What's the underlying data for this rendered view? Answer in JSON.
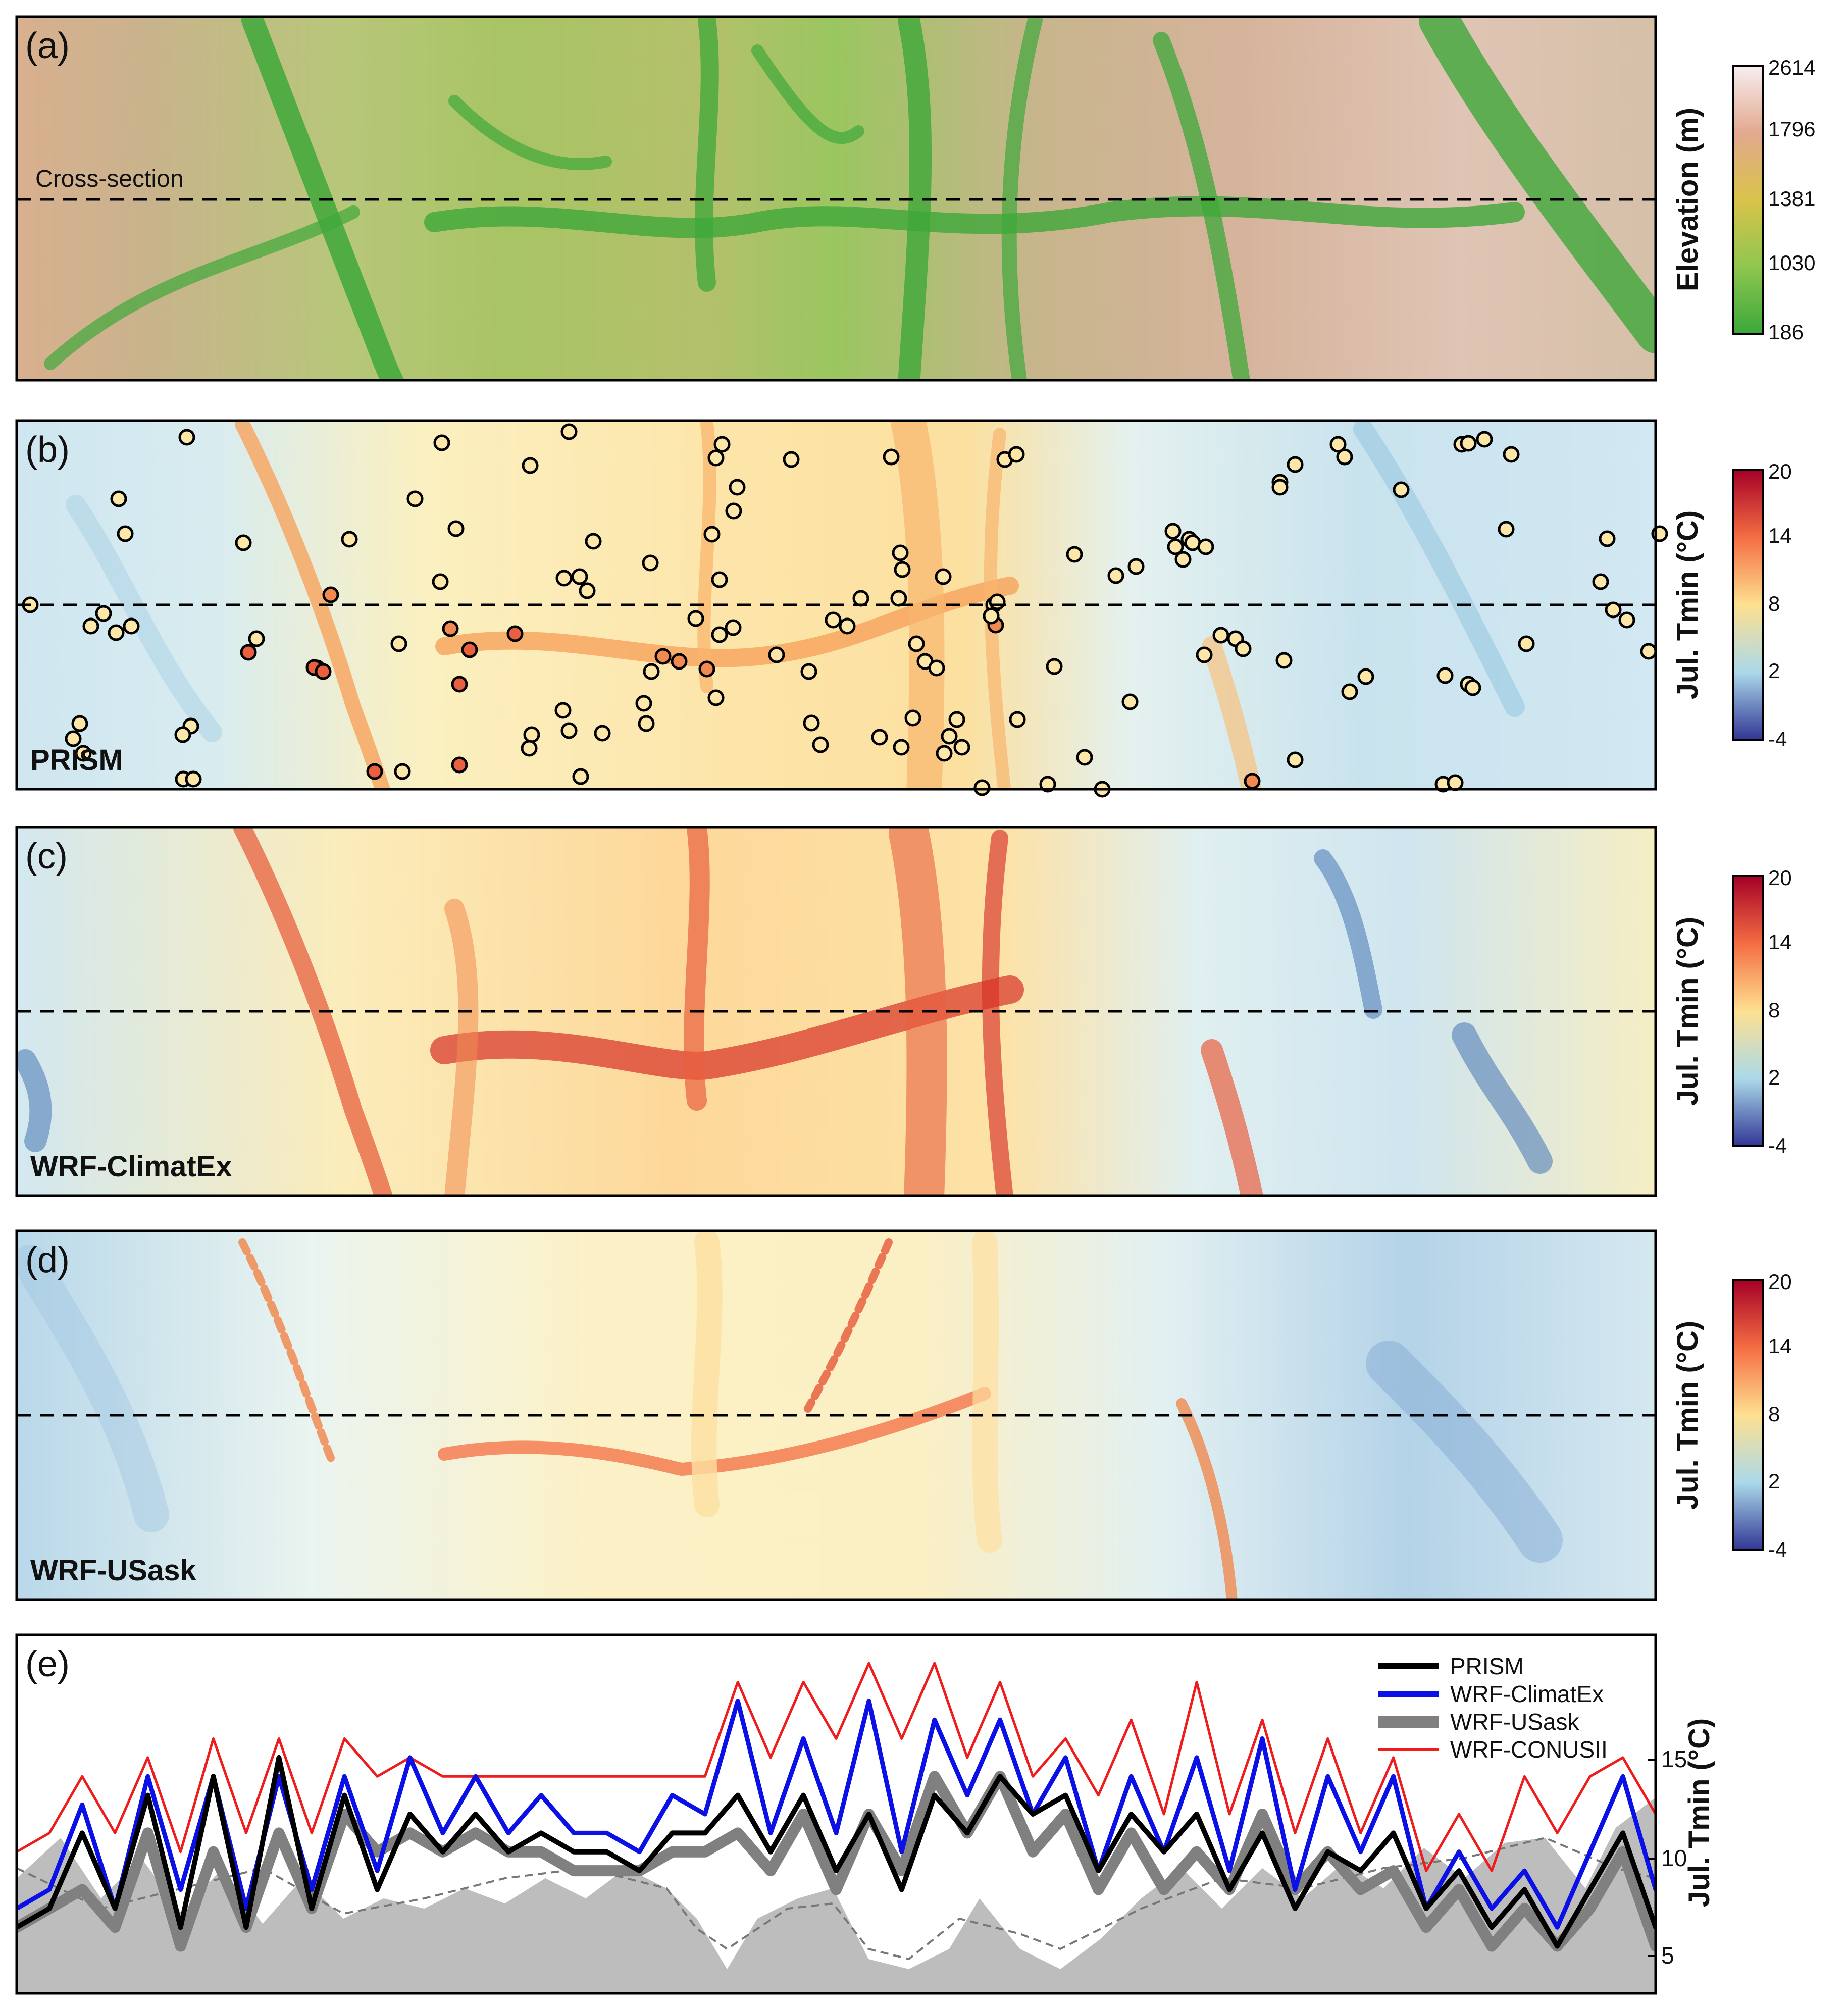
{
  "panels": {
    "a": {
      "letter": "(a)",
      "annotation": "Cross-section"
    },
    "b": {
      "letter": "(b)",
      "label": "PRISM"
    },
    "c": {
      "letter": "(c)",
      "label": "WRF-ClimatEx"
    },
    "d": {
      "letter": "(d)",
      "label": "WRF-USask"
    },
    "e": {
      "letter": "(e)"
    }
  },
  "colorbars": {
    "elevation": {
      "title": "Elevation (m)",
      "ticks": [
        "2614",
        "1796",
        "1381",
        "1030",
        "186"
      ],
      "colors": [
        "#f7eef0",
        "#e2a98f",
        "#d9c34a",
        "#8fc64f",
        "#3aa83a"
      ]
    },
    "tmin": {
      "title": "Jul. Tmin (°C)",
      "ticks": [
        "20",
        "14",
        "8",
        "2",
        "-4"
      ],
      "colors": [
        "#a50026",
        "#f46d43",
        "#fee090",
        "#abd9e9",
        "#313695"
      ]
    }
  },
  "chart_data": {
    "type": "line",
    "ylabel": "Jul. Tmin (°C)",
    "yticks": [
      "15",
      "10",
      "5"
    ],
    "ylim": [
      0.5,
      19.5
    ],
    "x_range": [
      0,
      100
    ],
    "legend_position": "top-right",
    "series": [
      {
        "name": "PRISM",
        "color": "#000000",
        "x": [
          0,
          2,
          4,
          6,
          8,
          10,
          12,
          14,
          16,
          18,
          20,
          22,
          24,
          26,
          28,
          30,
          32,
          34,
          36,
          38,
          40,
          42,
          44,
          46,
          48,
          50,
          52,
          54,
          56,
          58,
          60,
          62,
          64,
          66,
          68,
          70,
          72,
          74,
          76,
          78,
          80,
          82,
          84,
          86,
          88,
          90,
          92,
          94,
          96,
          98,
          100
        ],
        "y": [
          4,
          5,
          9,
          5,
          11,
          4,
          12,
          4,
          13,
          5,
          11,
          6,
          10,
          8,
          10,
          8,
          9,
          8,
          8,
          7,
          9,
          9,
          11,
          8,
          11,
          7,
          10,
          6,
          11,
          9,
          12,
          10,
          11,
          7,
          10,
          8,
          10,
          6,
          9,
          5,
          8,
          7,
          9,
          5,
          7,
          4,
          6,
          3,
          6,
          9,
          4
        ]
      },
      {
        "name": "WRF-ClimatEx",
        "color": "#0a10e6",
        "x": [
          0,
          2,
          4,
          6,
          8,
          10,
          12,
          14,
          16,
          18,
          20,
          22,
          24,
          26,
          28,
          30,
          32,
          34,
          36,
          38,
          40,
          42,
          44,
          46,
          48,
          50,
          52,
          54,
          56,
          58,
          60,
          62,
          64,
          66,
          68,
          70,
          72,
          74,
          76,
          78,
          80,
          82,
          84,
          86,
          88,
          90,
          92,
          94,
          96,
          98,
          100
        ],
        "y": [
          5,
          6,
          10.5,
          5,
          12,
          6,
          12,
          5,
          12,
          6,
          12,
          7,
          13,
          9,
          12,
          9,
          11,
          9,
          9,
          8,
          11,
          10,
          16,
          9,
          14,
          9,
          16,
          8,
          15,
          11,
          15,
          10,
          13,
          7,
          12,
          8,
          13,
          7,
          14,
          6,
          12,
          8,
          12,
          5,
          8,
          5,
          7,
          4,
          8,
          12,
          6
        ]
      },
      {
        "name": "WRF-USask",
        "color": "#808080",
        "x": [
          0,
          2,
          4,
          6,
          8,
          10,
          12,
          14,
          16,
          18,
          20,
          22,
          24,
          26,
          28,
          30,
          32,
          34,
          36,
          38,
          40,
          42,
          44,
          46,
          48,
          50,
          52,
          54,
          56,
          58,
          60,
          62,
          64,
          66,
          68,
          70,
          72,
          74,
          76,
          78,
          80,
          82,
          84,
          86,
          88,
          90,
          92,
          94,
          96,
          98,
          100
        ],
        "y": [
          4,
          5,
          6,
          4,
          9,
          3,
          8,
          4,
          9,
          5,
          10,
          8,
          9,
          8,
          9,
          8,
          8,
          7,
          7,
          7,
          8,
          8,
          9,
          7,
          10,
          6,
          10,
          7,
          12,
          9,
          12,
          8,
          10,
          6,
          9,
          6,
          8,
          6,
          10,
          6,
          8,
          6,
          7,
          4,
          6,
          3,
          5,
          3,
          5,
          8,
          3
        ]
      },
      {
        "name": "WRF-CONUSII",
        "color": "#ee1c1c",
        "x": [
          0,
          2,
          4,
          6,
          8,
          10,
          12,
          14,
          16,
          18,
          20,
          22,
          24,
          26,
          28,
          30,
          32,
          34,
          36,
          38,
          40,
          42,
          44,
          46,
          48,
          50,
          52,
          54,
          56,
          58,
          60,
          62,
          64,
          66,
          68,
          70,
          72,
          74,
          76,
          78,
          80,
          82,
          84,
          86,
          88,
          90,
          92,
          94,
          96,
          98,
          100
        ],
        "y": [
          8,
          9,
          12,
          9,
          13,
          8,
          14,
          9,
          14,
          9,
          14,
          12,
          13,
          12,
          12,
          12,
          12,
          12,
          12,
          12,
          12,
          12,
          17,
          13,
          17,
          14,
          18,
          14,
          18,
          13,
          17,
          12,
          14,
          11,
          15,
          10,
          17,
          10,
          15,
          9,
          14,
          9,
          13,
          7,
          10,
          7,
          12,
          9,
          12,
          13,
          10
        ]
      }
    ]
  }
}
